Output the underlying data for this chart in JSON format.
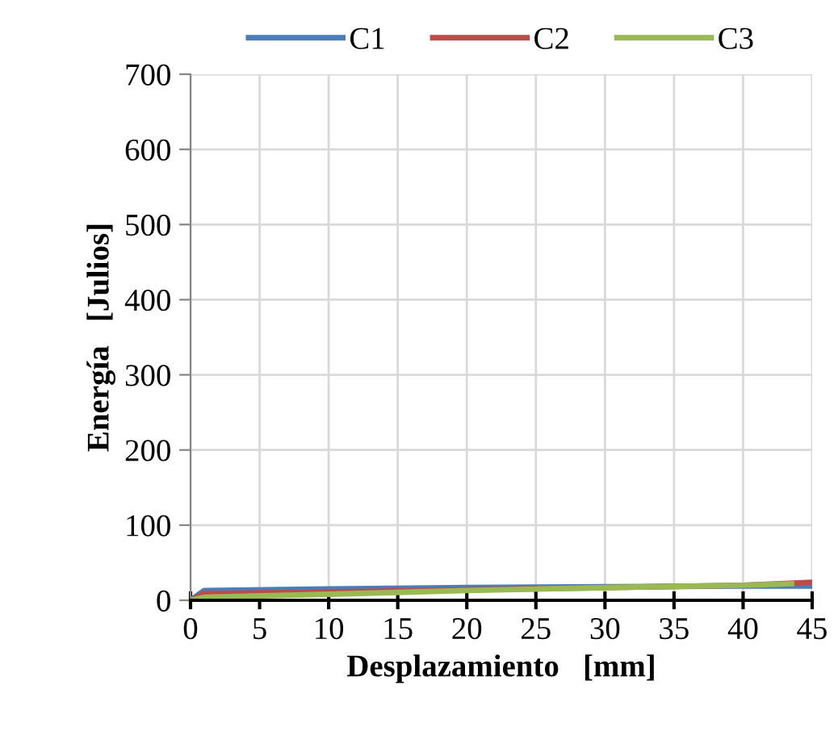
{
  "chart_data": {
    "type": "line",
    "xlabel": "Desplazamiento   [mm]",
    "ylabel": "Energía   [Julios]",
    "xlim": [
      0,
      45
    ],
    "xticks": [
      0,
      5,
      10,
      15,
      20,
      25,
      30,
      35,
      40,
      45
    ],
    "ylim": [
      0,
      700
    ],
    "yticks": [
      0,
      100,
      200,
      300,
      400,
      500,
      600,
      700
    ],
    "grid": true,
    "legend": "top",
    "line_style": "solid",
    "marker": "none",
    "series": [
      {
        "name": "C1",
        "color": "#4a7ebb",
        "x": [
          0,
          1,
          10,
          20,
          30,
          40,
          45
        ],
        "values": [
          0,
          13,
          15,
          17,
          18,
          19,
          19
        ]
      },
      {
        "name": "C2",
        "color": "#be4b48",
        "x": [
          0,
          1,
          10,
          20,
          30,
          40,
          45
        ],
        "values": [
          0,
          9,
          11,
          14,
          17,
          20,
          24
        ]
      },
      {
        "name": "C3",
        "color": "#98b954",
        "x": [
          0,
          1,
          10,
          20,
          30,
          40,
          43.5
        ],
        "values": [
          0,
          4,
          8,
          13,
          17,
          20,
          22
        ]
      }
    ]
  }
}
